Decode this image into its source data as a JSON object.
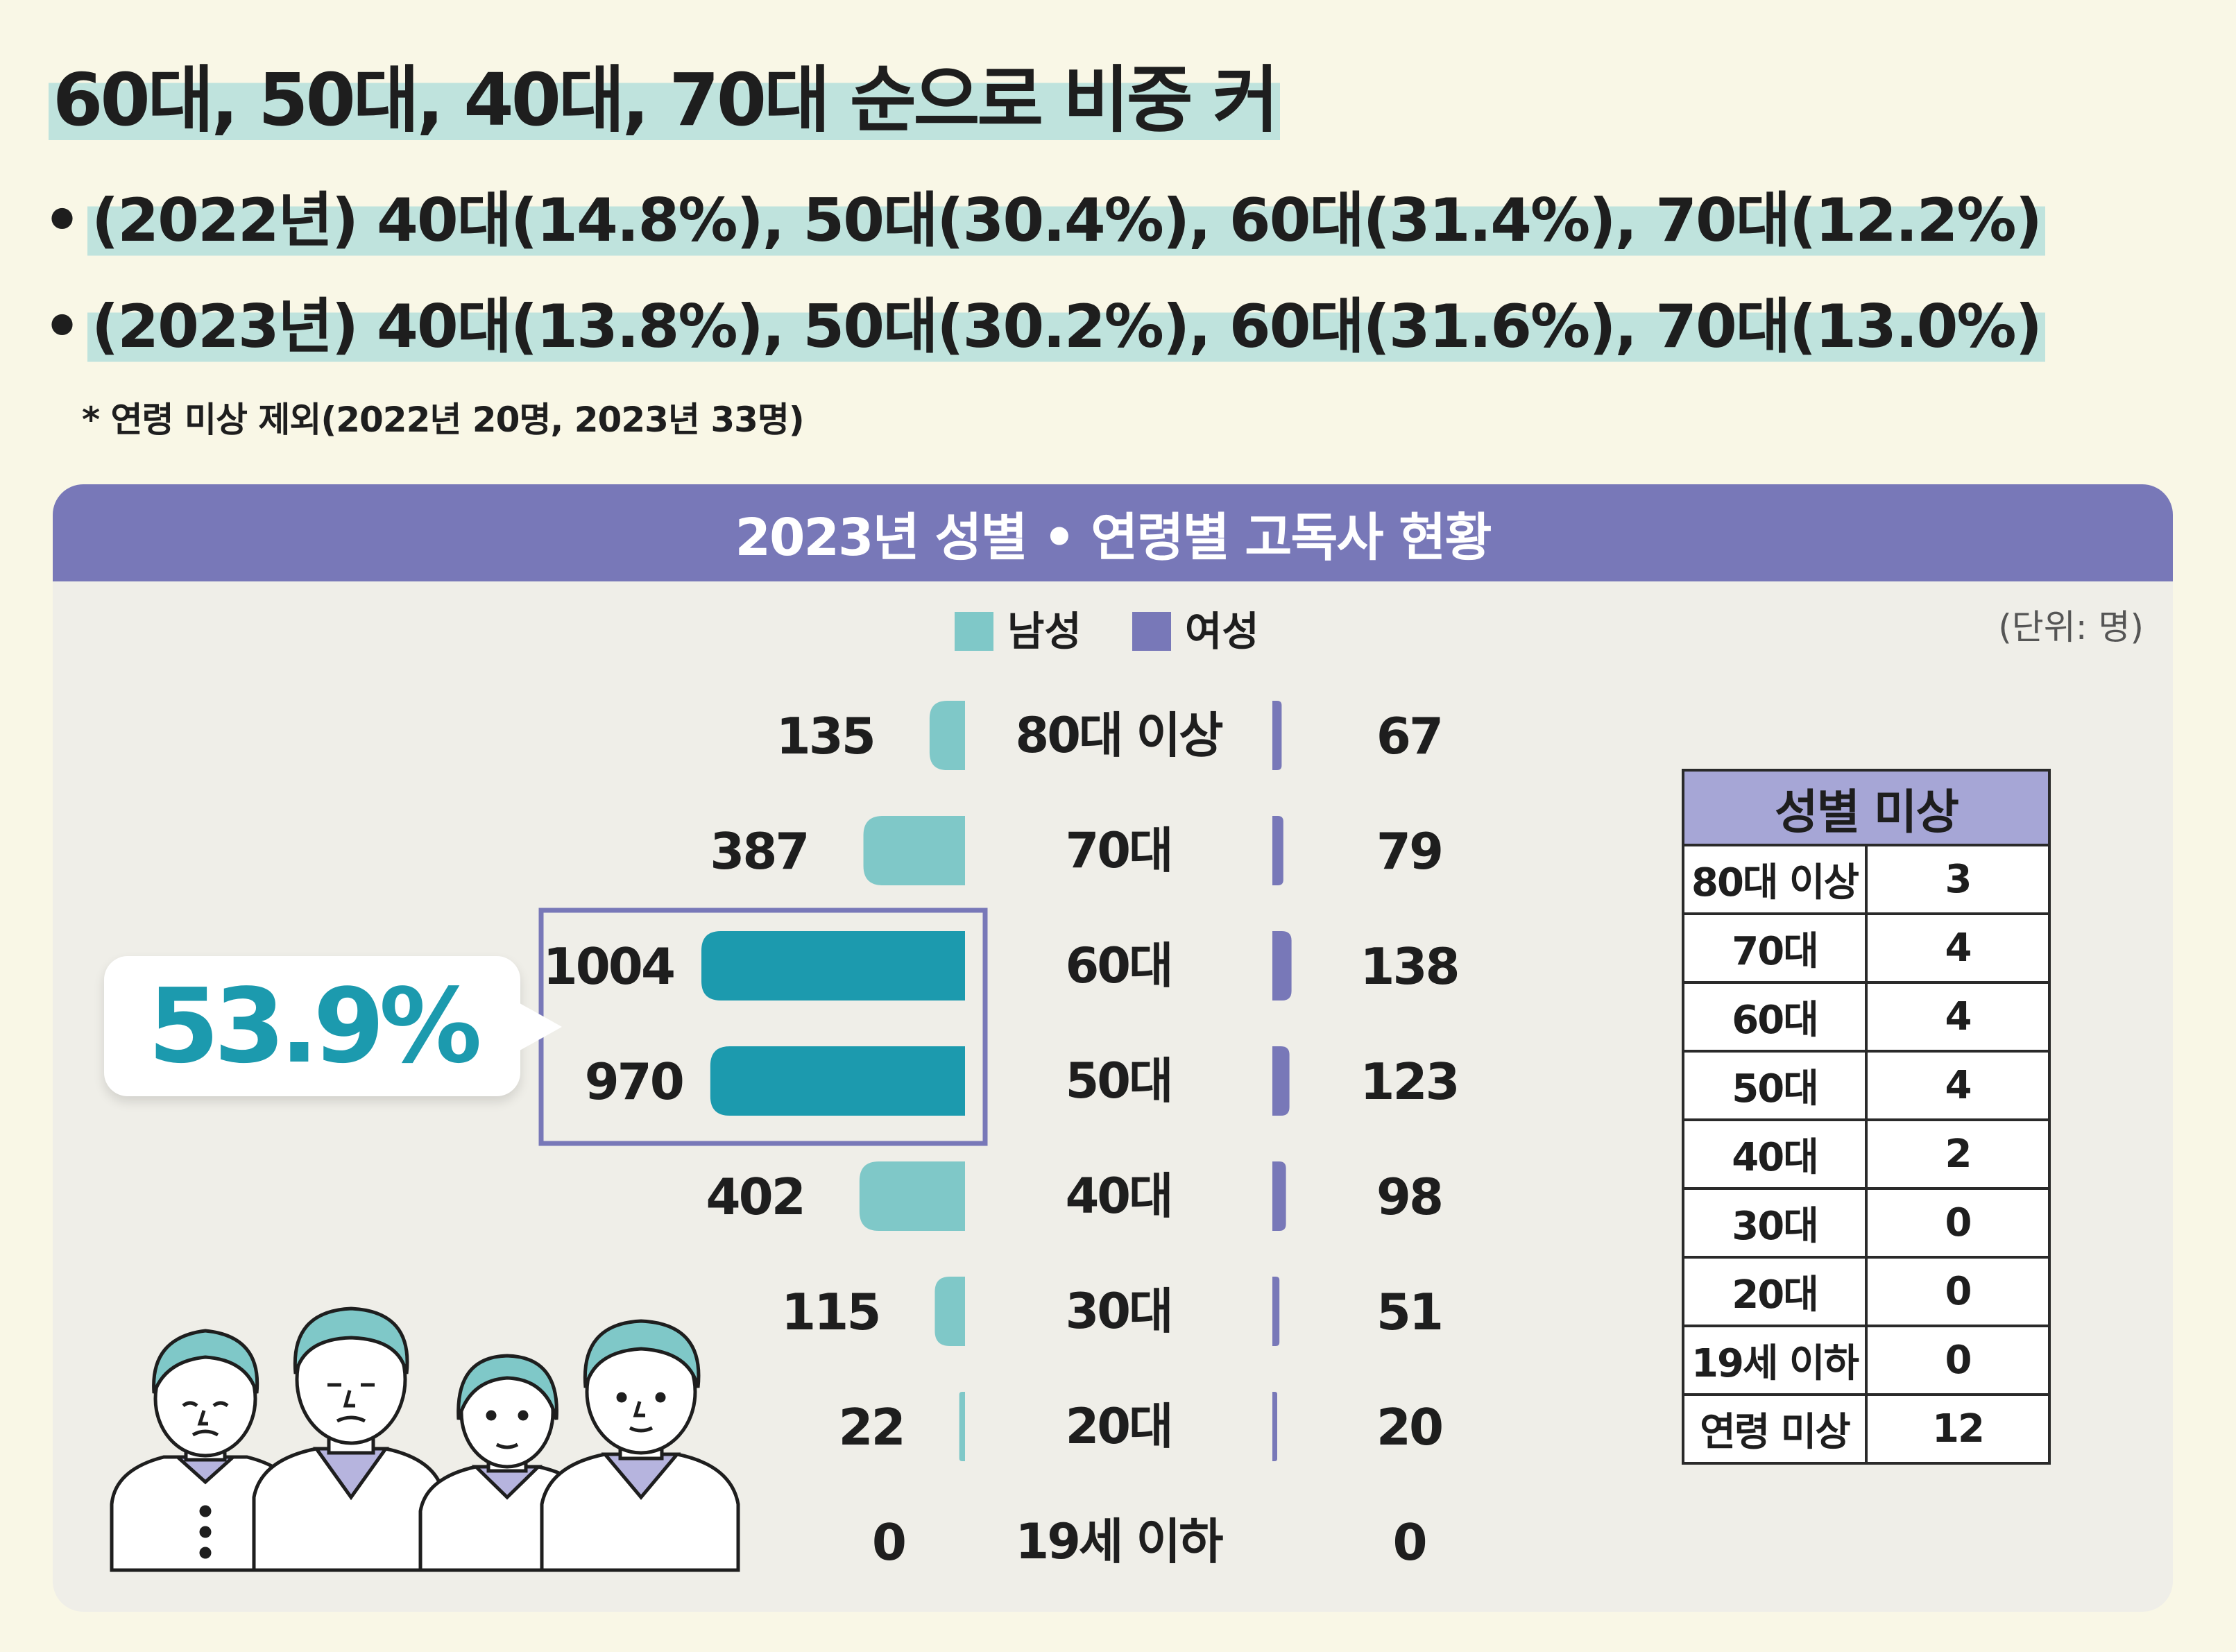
{
  "headline": "60대, 50대, 40대, 70대 순으로 비중 커",
  "bullets": [
    "(2022년) 40대(14.8%), 50대(30.4%), 60대(31.4%), 70대(12.2%)",
    "(2023년) 40대(13.8%), 50대(30.2%), 60대(31.6%), 70대(13.0%)"
  ],
  "bullet_symbol": "•",
  "footnote": "* 연령 미상 제외(2022년 20명, 2023년 33명)",
  "unit_label": "(단위: 명)",
  "callout": {
    "text": "53.9%",
    "color": "#1c9aae"
  },
  "colors": {
    "male": "#7fc8c8",
    "male_highlight": "#1c9aae",
    "female": "#7878b8",
    "header": "#7878b8",
    "table_header": "#a6a6d6"
  },
  "chart_data": {
    "type": "bar",
    "orientation": "horizontal-butterfly",
    "title": "2023년 성별 • 연령별 고독사 현황",
    "categories": [
      "80대 이상",
      "70대",
      "60대",
      "50대",
      "40대",
      "30대",
      "20대",
      "19세 이하"
    ],
    "series": [
      {
        "name": "남성",
        "values": [
          135,
          387,
          1004,
          970,
          402,
          115,
          22,
          0
        ]
      },
      {
        "name": "여성",
        "values": [
          67,
          79,
          138,
          123,
          98,
          51,
          20,
          0
        ]
      }
    ],
    "highlight_categories": [
      "60대",
      "50대"
    ],
    "legend_position": "top-center"
  },
  "unknown_gender_table": {
    "title": "성별 미상",
    "rows": [
      {
        "age": "80대 이상",
        "value": "3"
      },
      {
        "age": "70대",
        "value": "4"
      },
      {
        "age": "60대",
        "value": "4"
      },
      {
        "age": "50대",
        "value": "4"
      },
      {
        "age": "40대",
        "value": "2"
      },
      {
        "age": "30대",
        "value": "0"
      },
      {
        "age": "20대",
        "value": "0"
      },
      {
        "age": "19세 이하",
        "value": "0"
      },
      {
        "age": "연령 미상",
        "value": "12"
      }
    ]
  }
}
